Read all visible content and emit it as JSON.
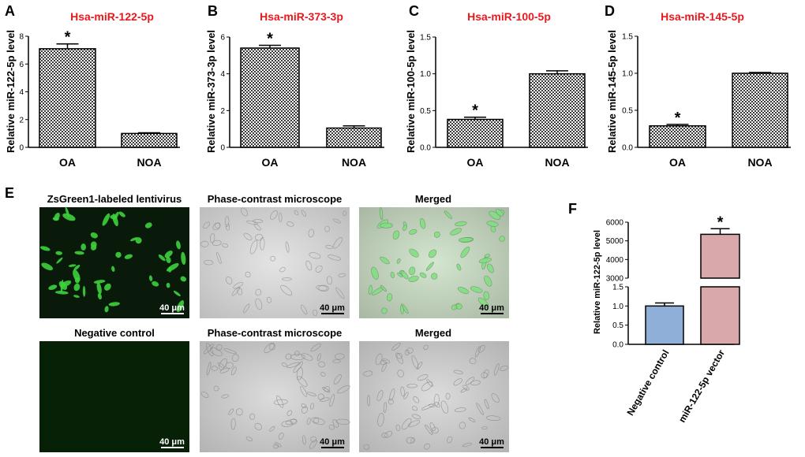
{
  "panels": {
    "A": {
      "letter": "A",
      "title": "Hsa-miR-122-5p",
      "ylabel": "Relative miR-122-5p level"
    },
    "B": {
      "letter": "B",
      "title": "Hsa-miR-373-3p",
      "ylabel": "Relative miR-373-3p level"
    },
    "C": {
      "letter": "C",
      "title": "Hsa-miR-100-5p",
      "ylabel": "Relative miR-100-5p level"
    },
    "D": {
      "letter": "D",
      "title": "Hsa-miR-145-5p",
      "ylabel": "Relative miR-145-5p level"
    },
    "E": {
      "letter": "E"
    },
    "F": {
      "letter": "F",
      "ylabel": "Relative miR-122-5p level"
    }
  },
  "microscopy": {
    "row1": [
      "ZsGreen1-labeled lentivirus",
      "Phase-contrast microscope",
      "Merged"
    ],
    "row2": [
      "Negative control",
      "Phase-contrast microscope",
      "Merged"
    ],
    "scale_bar": "40 μm"
  },
  "colors": {
    "title_red": "#e8191d",
    "bar_blue": "#8fafd9",
    "bar_pink": "#d9a8aa",
    "green_cells": "#3cd23c"
  },
  "chart_data": [
    {
      "type": "bar",
      "panel": "A",
      "title": "Hsa-miR-122-5p",
      "xlabel": "",
      "ylabel": "Relative miR-122-5p level",
      "categories": [
        "OA",
        "NOA"
      ],
      "values": [
        7.1,
        1.0
      ],
      "errors": [
        0.35,
        0.05
      ],
      "ylim": [
        0,
        8
      ],
      "yticks": [
        "0",
        "2",
        "4",
        "6",
        "8"
      ],
      "annotations": [
        "*",
        ""
      ],
      "pattern": "checkered"
    },
    {
      "type": "bar",
      "panel": "B",
      "title": "Hsa-miR-373-3p",
      "xlabel": "",
      "ylabel": "Relative miR-373-3p level",
      "categories": [
        "OA",
        "NOA"
      ],
      "values": [
        5.4,
        1.05
      ],
      "errors": [
        0.15,
        0.12
      ],
      "ylim": [
        0,
        6
      ],
      "yticks": [
        "0",
        "2",
        "4",
        "6"
      ],
      "annotations": [
        "*",
        ""
      ],
      "pattern": "checkered"
    },
    {
      "type": "bar",
      "panel": "C",
      "title": "Hsa-miR-100-5p",
      "xlabel": "",
      "ylabel": "Relative miR-100-5p level",
      "categories": [
        "OA",
        "NOA"
      ],
      "values": [
        0.38,
        1.0
      ],
      "errors": [
        0.03,
        0.04
      ],
      "ylim": [
        0,
        1.5
      ],
      "yticks": [
        "0.0",
        "0.5",
        "1.0",
        "1.5"
      ],
      "annotations": [
        "*",
        ""
      ],
      "pattern": "checkered"
    },
    {
      "type": "bar",
      "panel": "D",
      "title": "Hsa-miR-145-5p",
      "xlabel": "",
      "ylabel": "Relative miR-145-5p level",
      "categories": [
        "OA",
        "NOA"
      ],
      "values": [
        0.29,
        1.0
      ],
      "errors": [
        0.02,
        0.01
      ],
      "ylim": [
        0,
        1.5
      ],
      "yticks": [
        "0.0",
        "0.5",
        "1.0",
        "1.5"
      ],
      "annotations": [
        "*",
        ""
      ],
      "pattern": "checkered"
    },
    {
      "type": "bar",
      "panel": "F",
      "title": "",
      "xlabel": "",
      "ylabel": "Relative miR-122-5p level",
      "categories": [
        "Negative control",
        "miR-122-5p vector"
      ],
      "values": [
        1.0,
        5350
      ],
      "errors": [
        0.08,
        300
      ],
      "ylim_lower": [
        0,
        1.5
      ],
      "ylim_upper": [
        3000,
        6000
      ],
      "yticks_lower": [
        "0.0",
        "0.5",
        "1.0",
        "1.5"
      ],
      "yticks_upper": [
        "3000",
        "4000",
        "5000",
        "6000"
      ],
      "broken_axis": true,
      "annotations": [
        "",
        "*"
      ],
      "colors": [
        "#8fafd9",
        "#d9a8aa"
      ]
    }
  ]
}
